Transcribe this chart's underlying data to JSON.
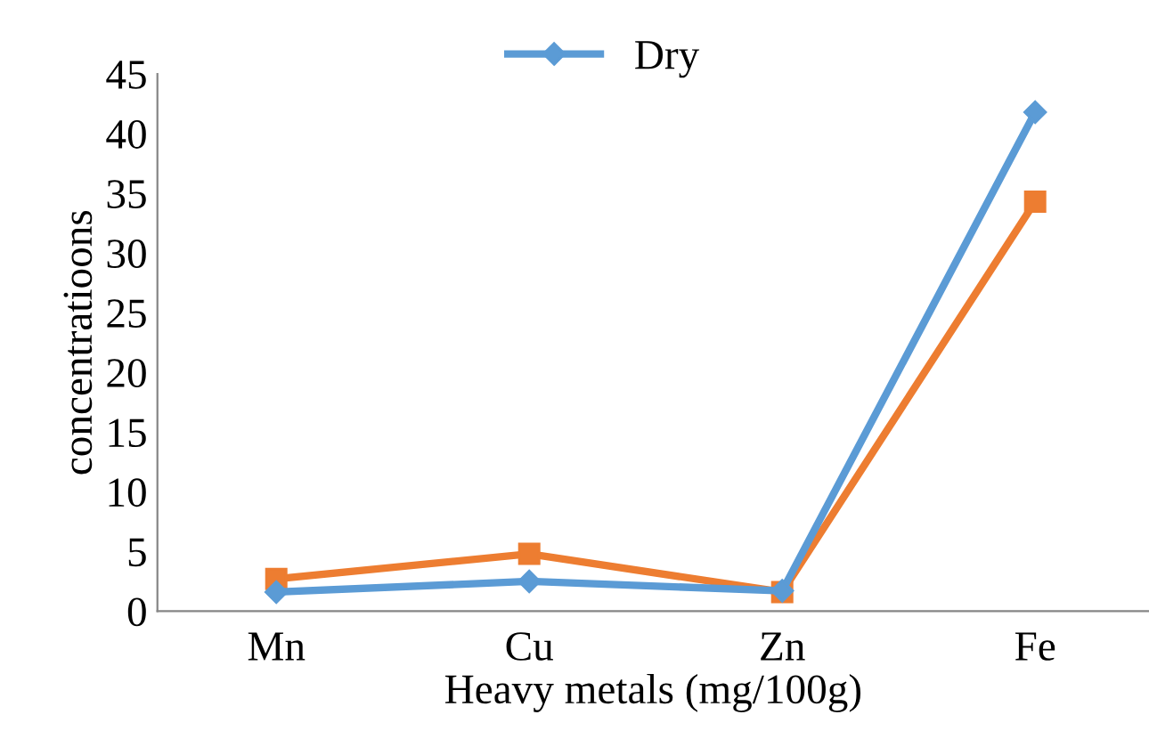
{
  "chart_data": {
    "type": "line",
    "xlabel": "Heavy metals (mg/100g)",
    "ylabel": "concentratioons",
    "categories": [
      "Mn",
      "Cu",
      "Zn",
      "Fe"
    ],
    "series": [
      {
        "name": "Dry",
        "color": "#5b9bd5",
        "marker": "diamond",
        "values": [
          1.6,
          2.5,
          1.7,
          41.8
        ]
      },
      {
        "color": "#ed7d31",
        "marker": "square",
        "values": [
          2.7,
          4.8,
          1.6,
          34.3
        ]
      }
    ],
    "ylim": [
      0,
      45
    ],
    "yticks": [
      0,
      5,
      10,
      15,
      20,
      25,
      30,
      35,
      40,
      45
    ],
    "grid": false,
    "legend": "top"
  }
}
